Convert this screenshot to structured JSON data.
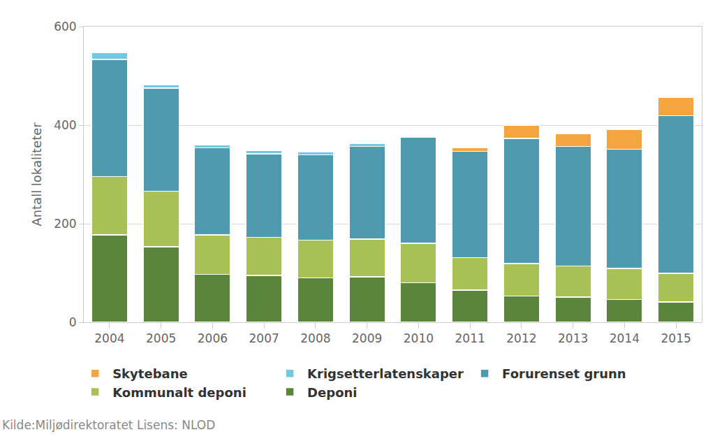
{
  "chart_data": {
    "type": "bar",
    "stacked": true,
    "y_label": "Antall lokaliteter",
    "source": "Kilde:Miljødirektoratet Lisens: NLOD",
    "categories": [
      "2004",
      "2005",
      "2006",
      "2007",
      "2008",
      "2009",
      "2010",
      "2011",
      "2012",
      "2013",
      "2014",
      "2015"
    ],
    "series": [
      {
        "name": "Deponi",
        "color": "#5a853b",
        "values": [
          177,
          153,
          97,
          95,
          90,
          92,
          80,
          65,
          53,
          51,
          46,
          41
        ]
      },
      {
        "name": "Kommunalt deponi",
        "color": "#a8c154",
        "values": [
          119,
          113,
          80,
          77,
          77,
          77,
          80,
          66,
          66,
          63,
          63,
          58
        ]
      },
      {
        "name": "Forurenset grunn",
        "color": "#4f9aae",
        "values": [
          237,
          209,
          177,
          170,
          173,
          188,
          216,
          216,
          254,
          243,
          242,
          320
        ]
      },
      {
        "name": "Krigsetterlatenskaper",
        "color": "#6fc9e3",
        "values": [
          14,
          7,
          6,
          6,
          6,
          6,
          3,
          0,
          0,
          0,
          0,
          0
        ]
      },
      {
        "name": "Skytebane",
        "color": "#f5a540",
        "values": [
          0,
          0,
          0,
          0,
          0,
          0,
          0,
          7,
          26,
          25,
          40,
          38
        ]
      }
    ],
    "ylim": [
      0,
      600
    ],
    "yticks": [
      0,
      200,
      400,
      600
    ],
    "grid": true,
    "legend": "bottom"
  }
}
